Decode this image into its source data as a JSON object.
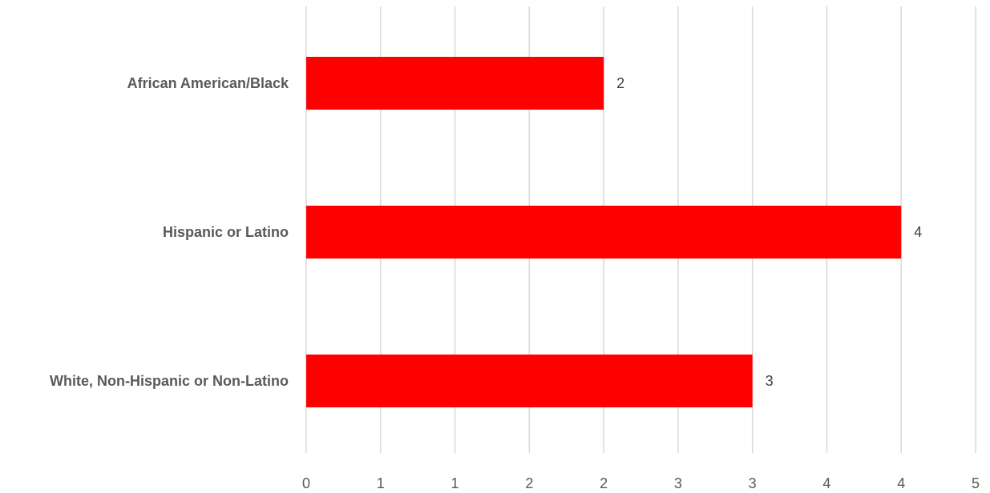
{
  "chart_data": {
    "type": "bar",
    "orientation": "horizontal",
    "title": "",
    "xlabel": "",
    "ylabel": "",
    "categories": [
      "African American/Black",
      "Hispanic or Latino",
      "White, Non-Hispanic or Non-Latino"
    ],
    "values": [
      2,
      4,
      3
    ],
    "data_labels": [
      "2",
      "4",
      "3"
    ],
    "xlim": [
      0,
      4.5
    ],
    "x_ticks": [
      {
        "value": 0,
        "label": "0"
      },
      {
        "value": 0.5,
        "label": "1"
      },
      {
        "value": 1.0,
        "label": "1"
      },
      {
        "value": 1.5,
        "label": "2"
      },
      {
        "value": 2.0,
        "label": "2"
      },
      {
        "value": 2.5,
        "label": "3"
      },
      {
        "value": 3.0,
        "label": "3"
      },
      {
        "value": 3.5,
        "label": "4"
      },
      {
        "value": 4.0,
        "label": "4"
      },
      {
        "value": 4.5,
        "label": "5"
      }
    ],
    "grid": true,
    "legend": "none",
    "colors": {
      "bar": "#ff0000",
      "grid": "#d9d9d9",
      "text": "#595959"
    }
  }
}
